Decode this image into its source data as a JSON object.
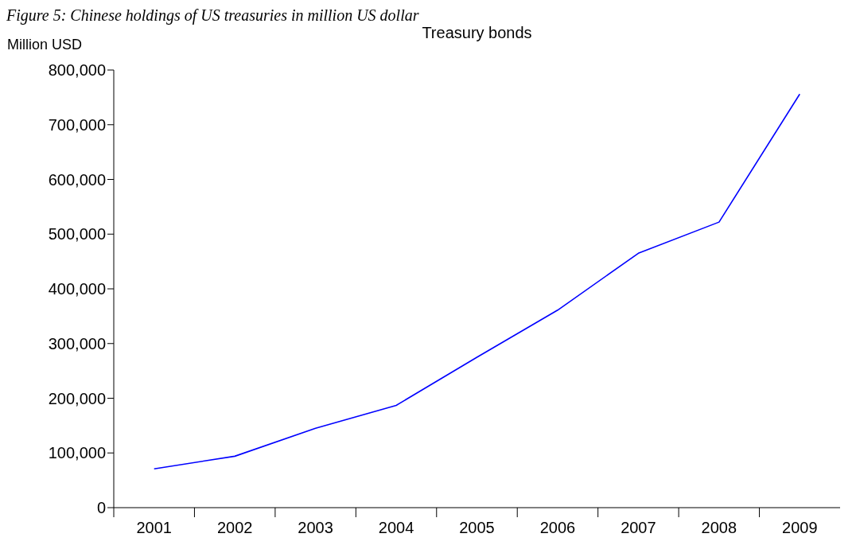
{
  "chart_data": {
    "type": "line",
    "title": "Treasury bonds",
    "ylabel": "Million USD",
    "annotations": [
      "Figure 5: Chinese holdings of US treasuries in million US dollar"
    ],
    "categories": [
      "2001",
      "2002",
      "2003",
      "2004",
      "2005",
      "2006",
      "2007",
      "2008",
      "2009"
    ],
    "series": [
      {
        "color": "#0000ff",
        "values": [
          71000,
          94000,
          145000,
          187000,
          275000,
          361000,
          465000,
          522000,
          756000
        ]
      }
    ],
    "ylim": [
      0,
      800000
    ],
    "yticks": [
      0,
      {
        "value": 100000,
        "label": "100,000"
      },
      {
        "value": 200000,
        "label": "200,000"
      },
      {
        "value": 300000,
        "label": "300,000"
      },
      {
        "value": 400000,
        "label": "400,000"
      },
      {
        "value": 500000,
        "label": "500,000"
      },
      {
        "value": 600000,
        "label": "600,000"
      },
      {
        "value": 700000,
        "label": "700,000"
      },
      {
        "value": 800000,
        "label": "800,000"
      }
    ],
    "grid": false,
    "legend": false,
    "marker": "none",
    "line_style": "solid"
  }
}
